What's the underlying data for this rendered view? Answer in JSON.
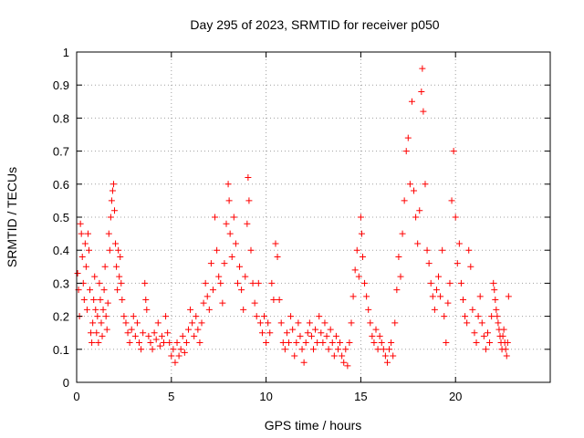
{
  "chart_data": {
    "type": "scatter",
    "title": "Day 295 of 2023, SRMTID for receiver p050",
    "xlabel": "GPS time / hours",
    "ylabel": "SRMTID / TECUs",
    "xlim": [
      0,
      25
    ],
    "ylim": [
      0,
      1
    ],
    "xticks": [
      0,
      5,
      10,
      15,
      20
    ],
    "yticks": [
      0,
      0.1,
      0.2,
      0.3,
      0.4,
      0.5,
      0.6,
      0.7,
      0.8,
      0.9,
      1
    ],
    "xtick_labels": [
      "0",
      "5",
      "10",
      "15",
      "20"
    ],
    "ytick_labels": [
      "0",
      "0.1",
      "0.2",
      "0.3",
      "0.4",
      "0.5",
      "0.6",
      "0.7",
      "0.8",
      "0.9",
      "1"
    ],
    "grid": true,
    "marker": "plus",
    "color": "#ff0000",
    "series": [
      {
        "name": "SRMTID",
        "points": [
          [
            0.05,
            0.33
          ],
          [
            0.1,
            0.28
          ],
          [
            0.15,
            0.2
          ],
          [
            0.2,
            0.48
          ],
          [
            0.25,
            0.45
          ],
          [
            0.3,
            0.38
          ],
          [
            0.35,
            0.3
          ],
          [
            0.4,
            0.25
          ],
          [
            0.45,
            0.42
          ],
          [
            0.5,
            0.35
          ],
          [
            0.55,
            0.22
          ],
          [
            0.6,
            0.45
          ],
          [
            0.65,
            0.4
          ],
          [
            0.7,
            0.28
          ],
          [
            0.75,
            0.15
          ],
          [
            0.8,
            0.12
          ],
          [
            0.85,
            0.18
          ],
          [
            0.9,
            0.25
          ],
          [
            0.95,
            0.32
          ],
          [
            1.0,
            0.22
          ],
          [
            1.05,
            0.15
          ],
          [
            1.1,
            0.2
          ],
          [
            1.15,
            0.12
          ],
          [
            1.2,
            0.3
          ],
          [
            1.25,
            0.25
          ],
          [
            1.3,
            0.18
          ],
          [
            1.35,
            0.14
          ],
          [
            1.4,
            0.22
          ],
          [
            1.45,
            0.28
          ],
          [
            1.5,
            0.35
          ],
          [
            1.55,
            0.2
          ],
          [
            1.6,
            0.16
          ],
          [
            1.65,
            0.24
          ],
          [
            1.7,
            0.45
          ],
          [
            1.75,
            0.4
          ],
          [
            1.8,
            0.5
          ],
          [
            1.85,
            0.55
          ],
          [
            1.9,
            0.58
          ],
          [
            1.95,
            0.6
          ],
          [
            2.0,
            0.52
          ],
          [
            2.05,
            0.42
          ],
          [
            2.1,
            0.35
          ],
          [
            2.15,
            0.28
          ],
          [
            2.2,
            0.4
          ],
          [
            2.25,
            0.32
          ],
          [
            2.3,
            0.38
          ],
          [
            2.35,
            0.3
          ],
          [
            2.4,
            0.25
          ],
          [
            2.5,
            0.2
          ],
          [
            2.6,
            0.18
          ],
          [
            2.7,
            0.15
          ],
          [
            2.8,
            0.12
          ],
          [
            2.9,
            0.16
          ],
          [
            3.0,
            0.2
          ],
          [
            3.1,
            0.14
          ],
          [
            3.2,
            0.18
          ],
          [
            3.3,
            0.12
          ],
          [
            3.4,
            0.1
          ],
          [
            3.5,
            0.15
          ],
          [
            3.6,
            0.3
          ],
          [
            3.65,
            0.25
          ],
          [
            3.7,
            0.22
          ],
          [
            3.8,
            0.14
          ],
          [
            3.9,
            0.12
          ],
          [
            4.0,
            0.1
          ],
          [
            4.1,
            0.15
          ],
          [
            4.2,
            0.13
          ],
          [
            4.3,
            0.18
          ],
          [
            4.4,
            0.11
          ],
          [
            4.5,
            0.14
          ],
          [
            4.6,
            0.12
          ],
          [
            4.7,
            0.2
          ],
          [
            4.8,
            0.15
          ],
          [
            4.9,
            0.12
          ],
          [
            5.0,
            0.08
          ],
          [
            5.1,
            0.1
          ],
          [
            5.2,
            0.06
          ],
          [
            5.3,
            0.12
          ],
          [
            5.4,
            0.08
          ],
          [
            5.5,
            0.1
          ],
          [
            5.6,
            0.14
          ],
          [
            5.7,
            0.09
          ],
          [
            5.8,
            0.12
          ],
          [
            5.9,
            0.16
          ],
          [
            6.0,
            0.22
          ],
          [
            6.1,
            0.18
          ],
          [
            6.2,
            0.14
          ],
          [
            6.3,
            0.2
          ],
          [
            6.4,
            0.16
          ],
          [
            6.5,
            0.12
          ],
          [
            6.6,
            0.18
          ],
          [
            6.7,
            0.24
          ],
          [
            6.8,
            0.3
          ],
          [
            6.9,
            0.26
          ],
          [
            7.0,
            0.22
          ],
          [
            7.1,
            0.36
          ],
          [
            7.2,
            0.28
          ],
          [
            7.3,
            0.5
          ],
          [
            7.4,
            0.4
          ],
          [
            7.5,
            0.32
          ],
          [
            7.6,
            0.3
          ],
          [
            7.7,
            0.24
          ],
          [
            7.8,
            0.36
          ],
          [
            7.9,
            0.48
          ],
          [
            8.0,
            0.6
          ],
          [
            8.05,
            0.55
          ],
          [
            8.1,
            0.45
          ],
          [
            8.2,
            0.38
          ],
          [
            8.3,
            0.5
          ],
          [
            8.4,
            0.42
          ],
          [
            8.5,
            0.3
          ],
          [
            8.6,
            0.35
          ],
          [
            8.7,
            0.28
          ],
          [
            8.8,
            0.22
          ],
          [
            8.9,
            0.32
          ],
          [
            9.0,
            0.48
          ],
          [
            9.05,
            0.62
          ],
          [
            9.1,
            0.55
          ],
          [
            9.2,
            0.4
          ],
          [
            9.3,
            0.3
          ],
          [
            9.4,
            0.24
          ],
          [
            9.5,
            0.2
          ],
          [
            9.6,
            0.3
          ],
          [
            9.7,
            0.18
          ],
          [
            9.8,
            0.15
          ],
          [
            9.9,
            0.2
          ],
          [
            10.0,
            0.12
          ],
          [
            10.1,
            0.18
          ],
          [
            10.2,
            0.15
          ],
          [
            10.3,
            0.3
          ],
          [
            10.4,
            0.25
          ],
          [
            10.5,
            0.42
          ],
          [
            10.6,
            0.38
          ],
          [
            10.7,
            0.25
          ],
          [
            10.8,
            0.18
          ],
          [
            10.9,
            0.12
          ],
          [
            11.0,
            0.1
          ],
          [
            11.1,
            0.15
          ],
          [
            11.2,
            0.12
          ],
          [
            11.3,
            0.2
          ],
          [
            11.4,
            0.16
          ],
          [
            11.5,
            0.08
          ],
          [
            11.6,
            0.12
          ],
          [
            11.7,
            0.18
          ],
          [
            11.8,
            0.14
          ],
          [
            11.9,
            0.1
          ],
          [
            12.0,
            0.06
          ],
          [
            12.1,
            0.12
          ],
          [
            12.2,
            0.15
          ],
          [
            12.3,
            0.18
          ],
          [
            12.4,
            0.14
          ],
          [
            12.5,
            0.1
          ],
          [
            12.6,
            0.16
          ],
          [
            12.7,
            0.12
          ],
          [
            12.8,
            0.2
          ],
          [
            12.9,
            0.15
          ],
          [
            13.0,
            0.12
          ],
          [
            13.1,
            0.18
          ],
          [
            13.2,
            0.14
          ],
          [
            13.3,
            0.1
          ],
          [
            13.4,
            0.16
          ],
          [
            13.5,
            0.12
          ],
          [
            13.6,
            0.08
          ],
          [
            13.7,
            0.14
          ],
          [
            13.8,
            0.1
          ],
          [
            13.9,
            0.12
          ],
          [
            14.0,
            0.08
          ],
          [
            14.1,
            0.06
          ],
          [
            14.2,
            0.1
          ],
          [
            14.3,
            0.05
          ],
          [
            14.4,
            0.12
          ],
          [
            14.5,
            0.18
          ],
          [
            14.6,
            0.26
          ],
          [
            14.7,
            0.34
          ],
          [
            14.8,
            0.4
          ],
          [
            14.9,
            0.32
          ],
          [
            15.0,
            0.5
          ],
          [
            15.05,
            0.45
          ],
          [
            15.1,
            0.38
          ],
          [
            15.2,
            0.3
          ],
          [
            15.3,
            0.26
          ],
          [
            15.4,
            0.22
          ],
          [
            15.5,
            0.18
          ],
          [
            15.6,
            0.14
          ],
          [
            15.7,
            0.12
          ],
          [
            15.8,
            0.16
          ],
          [
            15.9,
            0.1
          ],
          [
            16.0,
            0.14
          ],
          [
            16.1,
            0.12
          ],
          [
            16.2,
            0.1
          ],
          [
            16.3,
            0.08
          ],
          [
            16.4,
            0.06
          ],
          [
            16.5,
            0.1
          ],
          [
            16.6,
            0.12
          ],
          [
            16.7,
            0.08
          ],
          [
            16.8,
            0.18
          ],
          [
            16.9,
            0.28
          ],
          [
            17.0,
            0.38
          ],
          [
            17.1,
            0.32
          ],
          [
            17.2,
            0.45
          ],
          [
            17.3,
            0.55
          ],
          [
            17.4,
            0.7
          ],
          [
            17.5,
            0.74
          ],
          [
            17.6,
            0.6
          ],
          [
            17.7,
            0.85
          ],
          [
            17.8,
            0.58
          ],
          [
            17.9,
            0.5
          ],
          [
            18.0,
            0.42
          ],
          [
            18.1,
            0.52
          ],
          [
            18.2,
            0.88
          ],
          [
            18.25,
            0.95
          ],
          [
            18.3,
            0.82
          ],
          [
            18.4,
            0.6
          ],
          [
            18.5,
            0.4
          ],
          [
            18.6,
            0.36
          ],
          [
            18.7,
            0.3
          ],
          [
            18.8,
            0.26
          ],
          [
            18.9,
            0.22
          ],
          [
            19.0,
            0.28
          ],
          [
            19.1,
            0.32
          ],
          [
            19.2,
            0.26
          ],
          [
            19.3,
            0.4
          ],
          [
            19.4,
            0.2
          ],
          [
            19.5,
            0.12
          ],
          [
            19.6,
            0.24
          ],
          [
            19.7,
            0.3
          ],
          [
            19.8,
            0.55
          ],
          [
            19.9,
            0.7
          ],
          [
            20.0,
            0.5
          ],
          [
            20.1,
            0.36
          ],
          [
            20.2,
            0.42
          ],
          [
            20.3,
            0.3
          ],
          [
            20.4,
            0.25
          ],
          [
            20.5,
            0.2
          ],
          [
            20.6,
            0.18
          ],
          [
            20.7,
            0.4
          ],
          [
            20.8,
            0.35
          ],
          [
            20.9,
            0.22
          ],
          [
            21.0,
            0.15
          ],
          [
            21.1,
            0.12
          ],
          [
            21.2,
            0.2
          ],
          [
            21.3,
            0.26
          ],
          [
            21.4,
            0.18
          ],
          [
            21.5,
            0.14
          ],
          [
            21.6,
            0.1
          ],
          [
            21.7,
            0.15
          ],
          [
            21.8,
            0.12
          ],
          [
            21.9,
            0.2
          ],
          [
            22.0,
            0.3
          ],
          [
            22.05,
            0.28
          ],
          [
            22.1,
            0.25
          ],
          [
            22.15,
            0.22
          ],
          [
            22.2,
            0.2
          ],
          [
            22.25,
            0.18
          ],
          [
            22.3,
            0.16
          ],
          [
            22.35,
            0.14
          ],
          [
            22.4,
            0.12
          ],
          [
            22.45,
            0.1
          ],
          [
            22.5,
            0.14
          ],
          [
            22.55,
            0.16
          ],
          [
            22.6,
            0.12
          ],
          [
            22.65,
            0.1
          ],
          [
            22.7,
            0.08
          ],
          [
            22.75,
            0.12
          ],
          [
            22.8,
            0.26
          ]
        ]
      }
    ]
  }
}
